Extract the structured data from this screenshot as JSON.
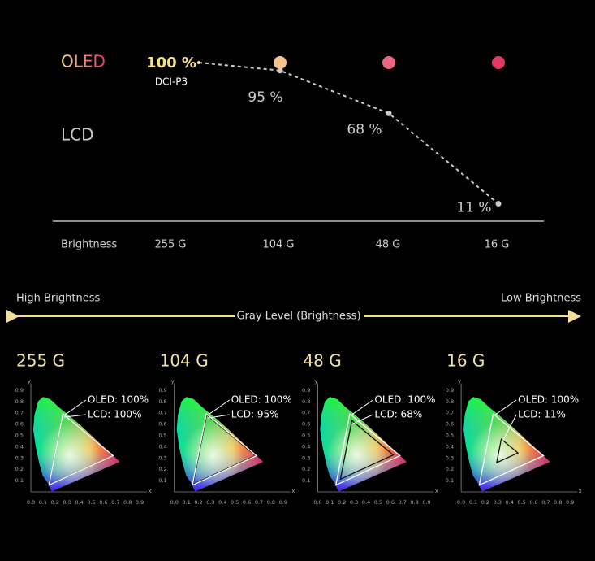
{
  "chart_data": {
    "type": "line",
    "categories": [
      "255 G",
      "104 G",
      "48 G",
      "16 G"
    ],
    "x_label": "Brightness",
    "annotation": "DCI-P3",
    "ylim": [
      0,
      100
    ],
    "series": [
      {
        "name": "OLED",
        "color": "#e23a64",
        "values": [
          100,
          100,
          100,
          100
        ],
        "value_labels": [
          "100 %",
          null,
          null,
          null
        ]
      },
      {
        "name": "LCD",
        "color": "#cccccc",
        "values": [
          100,
          95,
          68,
          11
        ],
        "value_labels": [
          null,
          "95 %",
          "68 %",
          "11 %"
        ]
      }
    ]
  },
  "scale": {
    "left": "High Brightness",
    "right": "Low Brightness",
    "label": "Gray Level (Brightness)"
  },
  "panels": [
    {
      "title": "255 G",
      "oled_label": "OLED: 100%",
      "lcd_label": "LCD: 100%",
      "lcd_percent": 100
    },
    {
      "title": "104 G",
      "oled_label": "OLED: 100%",
      "lcd_label": "LCD: 95%",
      "lcd_percent": 95
    },
    {
      "title": "48 G",
      "oled_label": "OLED: 100%",
      "lcd_label": "LCD: 68%",
      "lcd_percent": 68
    },
    {
      "title": "16 G",
      "oled_label": "OLED: 100%",
      "lcd_label": "LCD: 11%",
      "lcd_percent": 11
    }
  ],
  "cie_axes": {
    "x_label": "x",
    "y_label": "y",
    "tick_labels": [
      "0.0",
      "0.1",
      "0.2",
      "0.3",
      "0.4",
      "0.5",
      "0.6",
      "0.7",
      "0.8",
      "0.9"
    ]
  }
}
